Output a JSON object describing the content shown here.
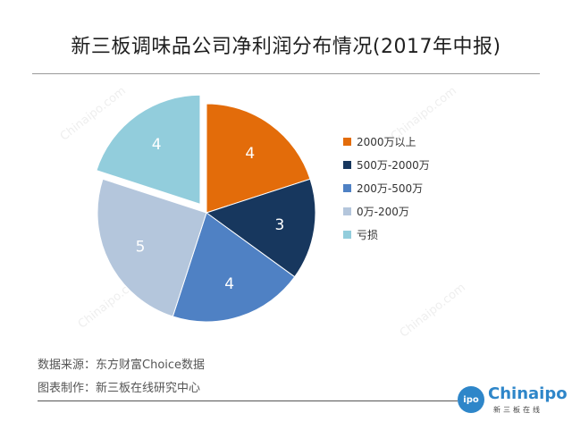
{
  "title": "新三板调味品公司净利润分布情况(2017年中报)",
  "chart_data": {
    "type": "pie",
    "title": "新三板调味品公司净利润分布情况(2017年中报)",
    "legend_position": "right",
    "slices": [
      {
        "label": "2000万以上",
        "value": 4,
        "color": "#e36c0a"
      },
      {
        "label": "500万-2000万",
        "value": 3,
        "color": "#17375e"
      },
      {
        "label": "200万-500万",
        "value": 4,
        "color": "#4f81c4"
      },
      {
        "label": "0万-200万",
        "value": 5,
        "color": "#b4c6dc"
      },
      {
        "label": "亏损",
        "value": 4,
        "color": "#92cddc",
        "exploded": true
      }
    ]
  },
  "footer": {
    "source": "数据来源：东方财富Choice数据",
    "made_by": "图表制作：新三板在线研究中心"
  },
  "logo": {
    "badge": "ipo",
    "word": "Chinaipo",
    "sub": "新三板在线"
  }
}
